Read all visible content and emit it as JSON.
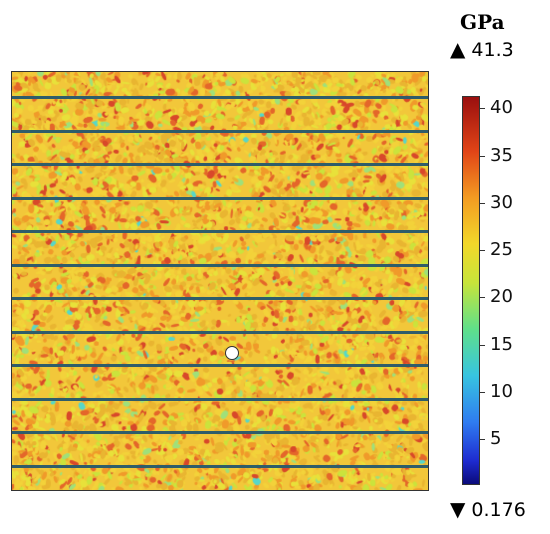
{
  "legend": {
    "unit": "GPa",
    "max_label": "41.3",
    "min_label": "0.176",
    "max_icon": "up-triangle-icon",
    "min_icon": "down-triangle-icon",
    "ticks": [
      "40",
      "35",
      "30",
      "25",
      "20",
      "15",
      "10",
      "5"
    ],
    "range": [
      0.176,
      41.3
    ],
    "colormap": [
      "#0b0b7a",
      "#2f7cf0",
      "#37c4e0",
      "#5fe08a",
      "#f2d82a",
      "#f39b22",
      "#e04417",
      "#9a0f0f"
    ]
  },
  "plot": {
    "layer_line_count": 12,
    "has_circular_hole": true
  }
}
